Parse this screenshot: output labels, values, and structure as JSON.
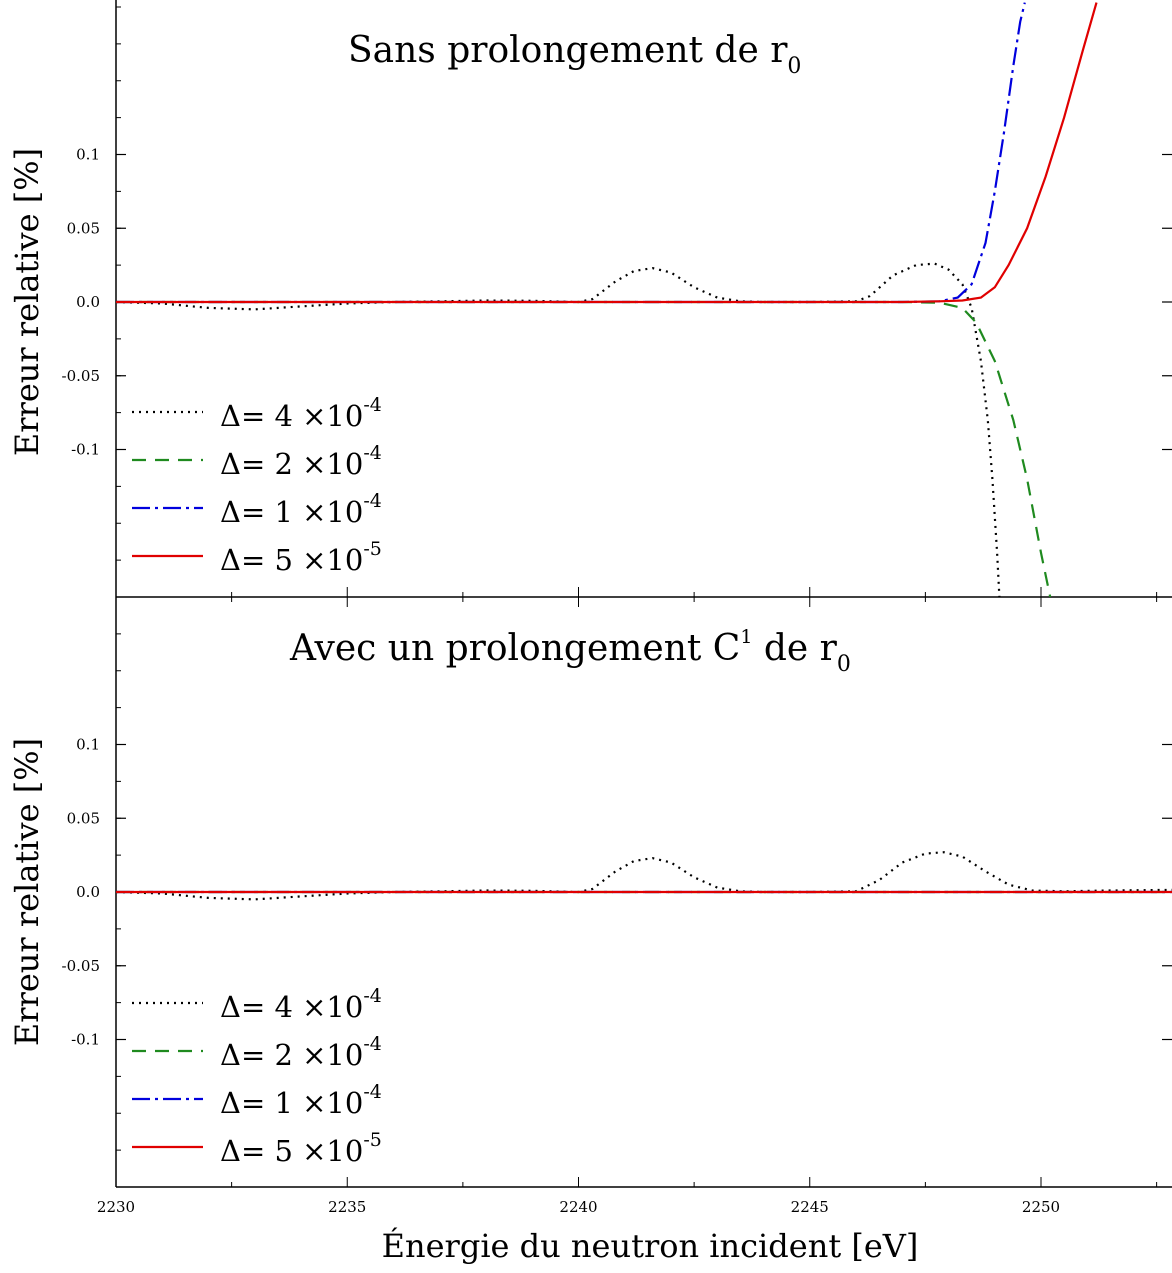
{
  "chart_data": [
    {
      "type": "line",
      "title_main": "Sans prolongement de r",
      "title_subscript": "0",
      "title_superscript": "",
      "title_tail": "",
      "ylabel": "Erreur relative [%]",
      "xlabel": "",
      "xlim": [
        2230,
        2253
      ],
      "ylim": [
        -0.2,
        0.2
      ],
      "yticks": [
        {
          "value": 0.1,
          "label": "0.1"
        },
        {
          "value": 0.05,
          "label": "0.05"
        },
        {
          "value": 0.0,
          "label": "0.0"
        },
        {
          "value": -0.05,
          "label": "-0.05"
        },
        {
          "value": -0.1,
          "label": "-0.1"
        }
      ],
      "legend_position": "bottom-left",
      "series": [
        {
          "name_prefix": "Δ= 4 ×10",
          "name_exp": "-4",
          "color": "#000000",
          "dash": "2,5",
          "x": [
            2230,
            2231,
            2232,
            2233,
            2234,
            2235,
            2236,
            2237,
            2238,
            2239,
            2240,
            2240.3,
            2240.8,
            2241.2,
            2241.6,
            2242.0,
            2242.5,
            2243.0,
            2243.5,
            2244,
            2245,
            2246,
            2246.3,
            2246.8,
            2247.3,
            2247.7,
            2248.0,
            2248.3,
            2248.5,
            2248.7,
            2248.85,
            2248.95,
            2249.05,
            2249.1
          ],
          "y": [
            0,
            -0.001,
            -0.004,
            -0.005,
            -0.003,
            -0.001,
            0.0,
            0.0005,
            0.001,
            0.0008,
            0.0,
            0.002,
            0.014,
            0.021,
            0.023,
            0.02,
            0.01,
            0.003,
            0.0005,
            0.0,
            0.0,
            0.0005,
            0.004,
            0.018,
            0.025,
            0.026,
            0.022,
            0.012,
            -0.004,
            -0.04,
            -0.08,
            -0.12,
            -0.17,
            -0.2
          ]
        },
        {
          "name_prefix": "Δ= 2 ×10",
          "name_exp": "-4",
          "color": "#1f8a1f",
          "dash": "14,9",
          "x": [
            2230,
            2235,
            2240,
            2245,
            2247,
            2247.8,
            2248.3,
            2248.6,
            2249.0,
            2249.4,
            2249.7,
            2250.0,
            2250.2
          ],
          "y": [
            0,
            0,
            0,
            0,
            0,
            -0.0005,
            -0.004,
            -0.014,
            -0.04,
            -0.08,
            -0.12,
            -0.17,
            -0.2
          ]
        },
        {
          "name_prefix": "Δ= 1 ×10",
          "name_exp": "-4",
          "color": "#0000dd",
          "dash": "18,5,3,5",
          "x": [
            2230,
            2235,
            2240,
            2245,
            2247,
            2247.8,
            2248.2,
            2248.5,
            2248.8,
            2249.0,
            2249.2,
            2249.4,
            2249.55,
            2249.65
          ],
          "y": [
            0,
            0,
            0,
            0,
            0,
            0.0005,
            0.003,
            0.012,
            0.04,
            0.075,
            0.115,
            0.16,
            0.19,
            0.203
          ]
        },
        {
          "name_prefix": "Δ= 5 ×10",
          "name_exp": "-5",
          "color": "#e00000",
          "dash": "",
          "x": [
            2230,
            2235,
            2240,
            2245,
            2247,
            2247.8,
            2248.3,
            2248.7,
            2249.0,
            2249.3,
            2249.7,
            2250.1,
            2250.5,
            2250.9,
            2251.2
          ],
          "y": [
            0,
            0,
            0,
            0,
            0,
            0.0005,
            0.001,
            0.003,
            0.01,
            0.025,
            0.05,
            0.085,
            0.125,
            0.17,
            0.203
          ]
        }
      ]
    },
    {
      "type": "line",
      "title_main": "Avec un prolongement C",
      "title_superscript": "1",
      "title_tail": " de r",
      "title_subscript": "0",
      "ylabel": "Erreur relative [%]",
      "xlabel": "Énergie du neutron incident [eV]",
      "xlim": [
        2230,
        2253
      ],
      "ylim": [
        -0.2,
        0.2
      ],
      "xticks": [
        {
          "value": 2230,
          "label": "2230"
        },
        {
          "value": 2235,
          "label": "2235"
        },
        {
          "value": 2240,
          "label": "2240"
        },
        {
          "value": 2245,
          "label": "2245"
        },
        {
          "value": 2250,
          "label": "2250"
        }
      ],
      "yticks": [
        {
          "value": 0.1,
          "label": "0.1"
        },
        {
          "value": 0.05,
          "label": "0.05"
        },
        {
          "value": 0.0,
          "label": "0.0"
        },
        {
          "value": -0.05,
          "label": "-0.05"
        },
        {
          "value": -0.1,
          "label": "-0.1"
        }
      ],
      "legend_position": "bottom-left",
      "series": [
        {
          "name_prefix": "Δ= 4 ×10",
          "name_exp": "-4",
          "color": "#000000",
          "dash": "2,5",
          "x": [
            2230,
            2231,
            2232,
            2233,
            2234,
            2235,
            2236,
            2237,
            2238,
            2239,
            2240,
            2240.3,
            2240.8,
            2241.2,
            2241.6,
            2242.0,
            2242.5,
            2243.0,
            2243.5,
            2244,
            2245,
            2246,
            2246.5,
            2247.0,
            2247.5,
            2247.9,
            2248.3,
            2248.8,
            2249.3,
            2249.8,
            2250.5,
            2251.5,
            2253
          ],
          "y": [
            0,
            -0.001,
            -0.004,
            -0.005,
            -0.003,
            -0.001,
            0.0,
            0.0005,
            0.001,
            0.0008,
            0.0,
            0.002,
            0.014,
            0.021,
            0.023,
            0.02,
            0.01,
            0.003,
            0.0005,
            0.0,
            0.0,
            0.0005,
            0.008,
            0.02,
            0.026,
            0.027,
            0.024,
            0.014,
            0.005,
            0.001,
            0.0005,
            0.001,
            0.0015
          ]
        },
        {
          "name_prefix": "Δ= 2 ×10",
          "name_exp": "-4",
          "color": "#1f8a1f",
          "dash": "14,9",
          "x": [
            2230,
            2253
          ],
          "y": [
            0,
            0
          ]
        },
        {
          "name_prefix": "Δ= 1 ×10",
          "name_exp": "-4",
          "color": "#0000dd",
          "dash": "18,5,3,5",
          "x": [
            2230,
            2253
          ],
          "y": [
            0,
            0
          ]
        },
        {
          "name_prefix": "Δ= 5 ×10",
          "name_exp": "-5",
          "color": "#e00000",
          "dash": "",
          "x": [
            2230,
            2253
          ],
          "y": [
            0,
            0
          ]
        }
      ]
    }
  ]
}
